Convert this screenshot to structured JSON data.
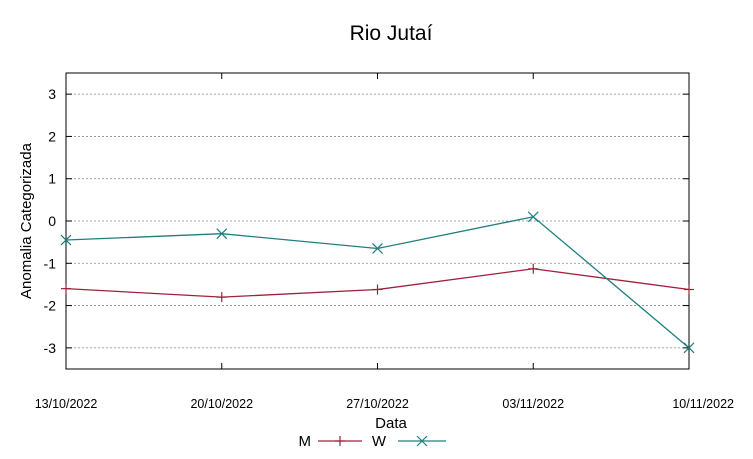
{
  "chart_data": {
    "type": "line",
    "title": "Rio Jutaí",
    "xlabel": "Data",
    "ylabel": "Anomalia Categorizada",
    "categories": [
      "13/10/2022",
      "20/10/2022",
      "27/10/2022",
      "03/11/2022",
      "10/11/2022"
    ],
    "ylim": [
      -3.5,
      3.5
    ],
    "yticks": [
      3,
      2,
      1,
      0,
      -1,
      -2,
      -3
    ],
    "grid": true,
    "legend_position": "bottom-center",
    "series": [
      {
        "name": "M",
        "color": "#a0203a",
        "marker": "plus",
        "values": [
          -1.6,
          -1.8,
          -1.62,
          -1.13,
          -1.62
        ]
      },
      {
        "name": "W",
        "color": "#1f7f7f",
        "marker": "cross",
        "values": [
          -0.45,
          -0.3,
          -0.65,
          0.1,
          -3.0
        ]
      }
    ]
  }
}
